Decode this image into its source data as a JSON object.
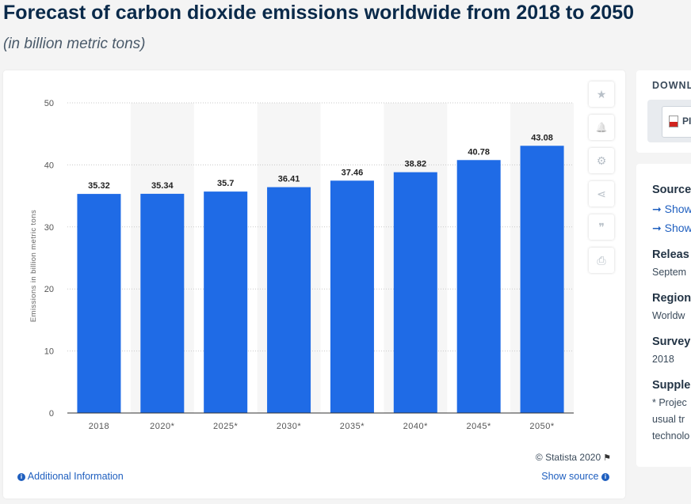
{
  "header": {
    "title": "Forecast of carbon dioxide emissions worldwide from 2018 to 2050",
    "subtitle": "(in billion metric tons)"
  },
  "chart_data": {
    "type": "bar",
    "categories": [
      "2018",
      "2020*",
      "2025*",
      "2030*",
      "2035*",
      "2040*",
      "2045*",
      "2050*"
    ],
    "values": [
      35.32,
      35.34,
      35.7,
      36.41,
      37.46,
      38.82,
      40.78,
      43.08
    ],
    "value_labels": [
      "35.32",
      "35.34",
      "35.7",
      "36.41",
      "37.46",
      "38.82",
      "40.78",
      "43.08"
    ],
    "ylabel": "Emissions in billion metric tons",
    "ylim": [
      0,
      50
    ],
    "yticks": [
      0,
      10,
      20,
      30,
      40,
      50
    ],
    "grid": true,
    "bar_color": "#1f6be6",
    "band_color": "#f6f6f6"
  },
  "toolbar": {
    "icons": [
      "star-icon",
      "bell-icon",
      "gear-icon",
      "share-icon",
      "quote-icon",
      "print-icon"
    ],
    "glyphs": [
      "★",
      "🔔",
      "⚙",
      "⋖",
      "❞",
      "⎙"
    ]
  },
  "footer": {
    "copyright": "© Statista 2020",
    "additional_info": "Additional Information",
    "show_source": "Show source"
  },
  "sidebar": {
    "download_heading": "DOWNL",
    "pdf_label": "PI",
    "source_heading": "Source",
    "source_links": [
      "Show",
      "Show"
    ],
    "release_heading": "Releas",
    "release_value": "Septem",
    "region_heading": "Region",
    "region_value": "Worldw",
    "survey_heading": "Survey",
    "survey_value": "2018",
    "supplementary_heading": "Supple",
    "supplementary_lines": [
      "* Projec",
      "usual tr",
      "technolo"
    ]
  }
}
